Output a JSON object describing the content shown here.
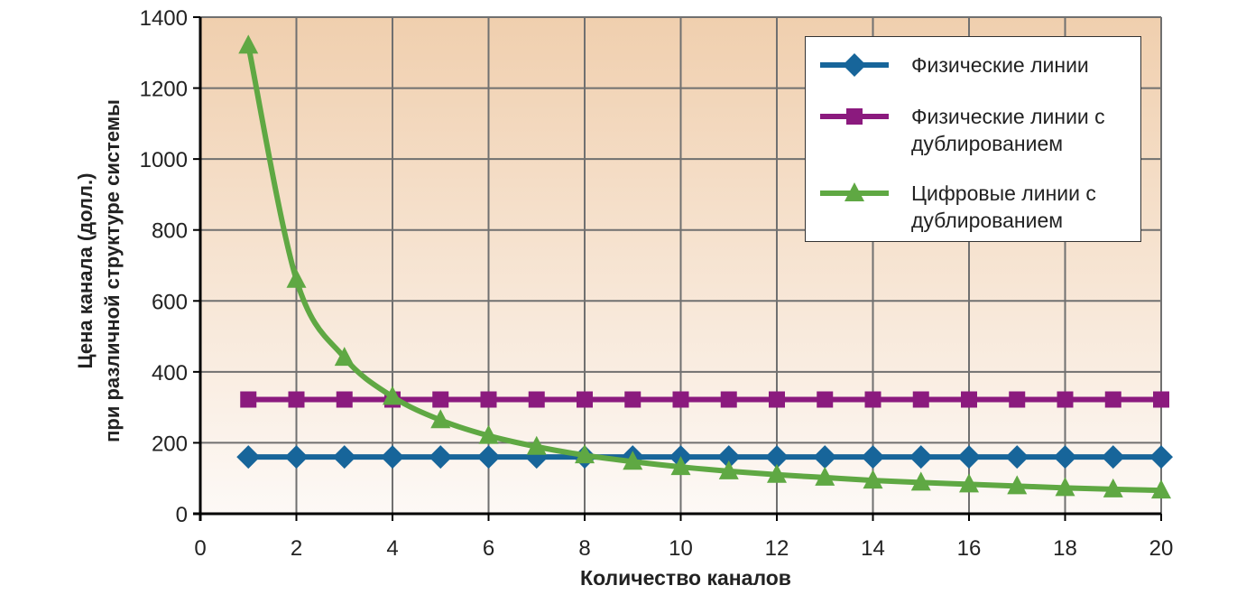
{
  "chart_data": {
    "type": "line",
    "x_label": "Количество каналов",
    "y_label": [
      "Цена канала (долл.)",
      "при различной структуре системы"
    ],
    "x": [
      1,
      2,
      3,
      4,
      5,
      6,
      7,
      8,
      9,
      10,
      11,
      12,
      13,
      14,
      15,
      16,
      17,
      18,
      19,
      20
    ],
    "series": [
      {
        "name": "Физические линии",
        "color": "#17659a",
        "marker": "diamond",
        "values": [
          160,
          160,
          160,
          160,
          160,
          160,
          160,
          160,
          160,
          160,
          160,
          160,
          160,
          160,
          160,
          160,
          160,
          160,
          160,
          160
        ]
      },
      {
        "name": "Физические линии с дублированием",
        "color": "#8b1a7e",
        "marker": "square",
        "values": [
          322,
          322,
          322,
          322,
          322,
          322,
          322,
          322,
          322,
          322,
          322,
          322,
          322,
          322,
          322,
          322,
          322,
          322,
          322,
          322
        ]
      },
      {
        "name": "Цифровые линии с дублированием",
        "color": "#5fa843",
        "marker": "triangle",
        "smooth": true,
        "values": [
          1320,
          660,
          440,
          330,
          264,
          220,
          189,
          165,
          147,
          132,
          120,
          110,
          102,
          94,
          88,
          83,
          78,
          73,
          69,
          66
        ]
      }
    ],
    "xlim": [
      0,
      20
    ],
    "xticks": [
      0,
      2,
      4,
      6,
      8,
      10,
      12,
      14,
      16,
      18,
      20
    ],
    "ylim": [
      0,
      1400
    ],
    "yticks": [
      0,
      200,
      400,
      600,
      800,
      1000,
      1200,
      1400
    ],
    "grid": true,
    "legend": "top-right"
  }
}
